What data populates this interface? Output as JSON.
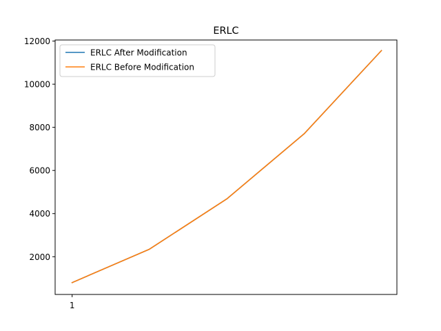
{
  "chart_data": {
    "type": "line",
    "title": "ERLC",
    "xlabel": "",
    "ylabel": "",
    "x": [
      1,
      2,
      3,
      4,
      5
    ],
    "x_ticks": [
      1
    ],
    "x_tick_labels": [
      "1"
    ],
    "xlim": [
      0.78,
      5.2
    ],
    "ylim": [
      250,
      12050
    ],
    "y_ticks": [
      2000,
      4000,
      6000,
      8000,
      10000,
      12000
    ],
    "y_tick_labels": [
      "2000",
      "4000",
      "6000",
      "8000",
      "10000",
      "12000"
    ],
    "grid": false,
    "legend": "upper-left",
    "series": [
      {
        "name": "ERLC After Modification",
        "color": "#1f77b4",
        "values": [
          800,
          2350,
          4680,
          7700,
          11560
        ]
      },
      {
        "name": "ERLC Before Modification",
        "color": "#ff7f0e",
        "values": [
          800,
          2350,
          4680,
          7700,
          11560
        ]
      }
    ]
  }
}
